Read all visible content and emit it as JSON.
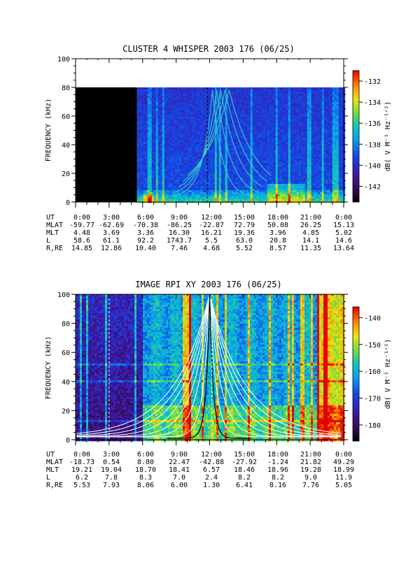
{
  "chart_data": [
    {
      "type": "heatmap",
      "title": "CLUSTER 4 WHISPER 2003 176 (06/25)",
      "ylabel": "FREQUENCY (kHz)",
      "ylim": [
        0,
        100
      ],
      "y_ticks": [
        "0",
        "20",
        "40",
        "60",
        "80",
        "100"
      ],
      "x_ticks": [
        "0:00",
        "3:00",
        "6:00",
        "9:00",
        "12:00",
        "15:00",
        "18:00",
        "21:00",
        "0:00"
      ],
      "data_top_khz": 80,
      "no_data_until_hour": 5.5,
      "colorbar": {
        "label": "dB( V M⁻¹ Hz⁻¹ᐟ²)",
        "ticks": [
          "-132",
          "-134",
          "-136",
          "-138",
          "-140",
          "-142"
        ],
        "range": [
          -143.5,
          -131
        ]
      },
      "ephemeris": {
        "rows": [
          {
            "label": "UT",
            "values": [
              "0:00",
              "3:00",
              "6:00",
              "9:00",
              "12:00",
              "15:00",
              "18:00",
              "21:00",
              "0:00"
            ]
          },
          {
            "label": "MLAT",
            "values": [
              "-59.77",
              "-62.69",
              "-70.38",
              "-86.25",
              "-22.87",
              "72.79",
              "50.08",
              "26.25",
              "15.13"
            ]
          },
          {
            "label": "MLT",
            "values": [
              "4.48",
              "3.69",
              "3.36",
              "16.30",
              "16.21",
              "19.36",
              "3.96",
              "4.85",
              "5.02"
            ]
          },
          {
            "label": "L",
            "values": [
              "58.6",
              "61.1",
              "92.2",
              "1743.7",
              "5.5",
              "63.0",
              "20.8",
              "14.1",
              "14.6"
            ]
          },
          {
            "label": "R,RE",
            "values": [
              "14.85",
              "12.86",
              "10.40",
              "7.46",
              "4.68",
              "5.52",
              "8.57",
              "11.35",
              "13.64"
            ]
          }
        ]
      }
    },
    {
      "type": "heatmap",
      "title": "IMAGE RPI XY 2003 176 (06/25)",
      "ylabel": "FREQUENCY (kHz)",
      "ylim": [
        0,
        100
      ],
      "y_ticks": [
        "0",
        "20",
        "40",
        "60",
        "80",
        "100"
      ],
      "x_ticks": [
        "0:00",
        "3:00",
        "6:00",
        "9:00",
        "12:00",
        "15:00",
        "18:00",
        "21:00",
        "0:00"
      ],
      "colorbar": {
        "label": "dB( V M⁻¹ Hz⁻¹ᐟ²)",
        "ticks": [
          "-140",
          "-150",
          "-160",
          "-170",
          "-180"
        ],
        "range": [
          -186,
          -136
        ]
      },
      "ephemeris": {
        "rows": [
          {
            "label": "UT",
            "values": [
              "0:00",
              "3:00",
              "6:00",
              "9:00",
              "12:00",
              "15:00",
              "18:00",
              "21:00",
              "0:00"
            ]
          },
          {
            "label": "MLAT",
            "values": [
              "-18.73",
              "0.54",
              "8.80",
              "22.47",
              "-42.88",
              "-27.92",
              "-1.24",
              "21.82",
              "49.29"
            ]
          },
          {
            "label": "MLT",
            "values": [
              "19.21",
              "19.04",
              "18.70",
              "18.41",
              "6.57",
              "18.46",
              "18.96",
              "19.28",
              "18.99"
            ]
          },
          {
            "label": "L",
            "values": [
              "6.2",
              "7.8",
              "8.3",
              "7.0",
              "2.4",
              "8.2",
              "8.2",
              "9.0",
              "11.9"
            ]
          },
          {
            "label": "R,RE",
            "values": [
              "5.53",
              "7.93",
              "8.06",
              "6.00",
              "1.30",
              "6.41",
              "8.16",
              "7.76",
              "5.05"
            ]
          }
        ]
      }
    }
  ]
}
